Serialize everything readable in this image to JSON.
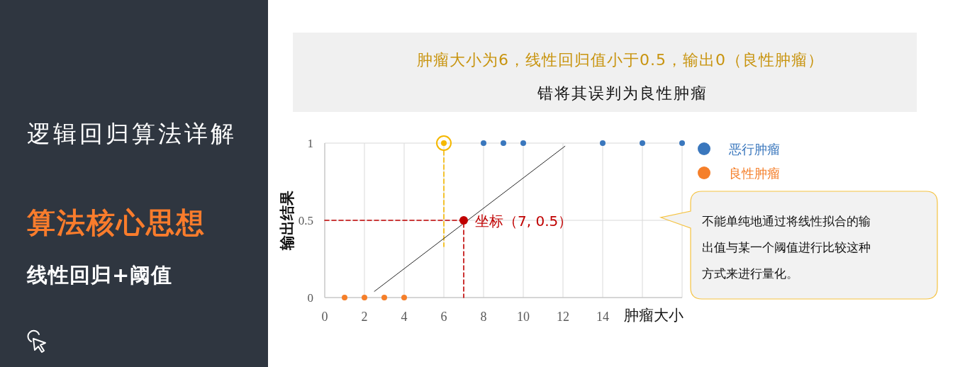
{
  "chart_data": {
    "type": "scatter",
    "title": "肿瘤大小为6，线性回归值小于0.5，输出0（良性肿瘤）",
    "subtitle": "错将其误判为良性肿瘤",
    "xlabel": "肿瘤大小",
    "ylabel": "输出结果",
    "xlim": [
      0,
      18
    ],
    "xticks": [
      0,
      2,
      4,
      6,
      8,
      10,
      12,
      14,
      {
        "value": 16,
        "label": null
      },
      {
        "value": 18,
        "label": null
      }
    ],
    "ylim": [
      0,
      1
    ],
    "yticks": [
      0,
      0.5,
      1
    ],
    "grid": true,
    "legend": "top right",
    "marker": "circle",
    "series": [
      {
        "name": "恶行肿瘤",
        "color": "#3a77bd",
        "x": [
          8,
          9,
          10,
          14,
          16,
          18
        ],
        "values": [
          1,
          1,
          1,
          1,
          1,
          1
        ]
      },
      {
        "name": "良性肿瘤",
        "color": "#f57f2a",
        "x": [
          1,
          2,
          3,
          4
        ],
        "values": [
          0,
          0,
          0,
          0
        ]
      },
      {
        "color": "#f5b800",
        "x": [
          6
        ],
        "values": [
          1
        ]
      },
      {
        "type": "line",
        "color": "#f5b800",
        "x": [
          6,
          6
        ],
        "values": [
          0.95,
          0.33
        ],
        "line_style": "dashed",
        "marker": "none"
      },
      {
        "type": "line",
        "color": "#262626",
        "x": [
          2.5,
          12.1
        ],
        "values": [
          0.04,
          0.98
        ],
        "marker": "none"
      },
      {
        "type": "line",
        "color": "#c00000",
        "x": [
          0,
          7,
          7
        ],
        "values": [
          0.5,
          0.5,
          0
        ],
        "line_style": "dashed",
        "marker": "none"
      },
      {
        "color": "#c00000",
        "x": [
          7
        ],
        "values": [
          0.5
        ]
      }
    ],
    "annotations": [
      {
        "text": "坐标（7, 0.5）",
        "x": 7,
        "y": 0.5
      },
      "不能单纯地通过将线性拟合的输出值与某一个阈值进行比较这种方式来进行量化。",
      "逻辑回归算法详解",
      "算法核心思想",
      "线性回归+阈值"
    ]
  }
}
